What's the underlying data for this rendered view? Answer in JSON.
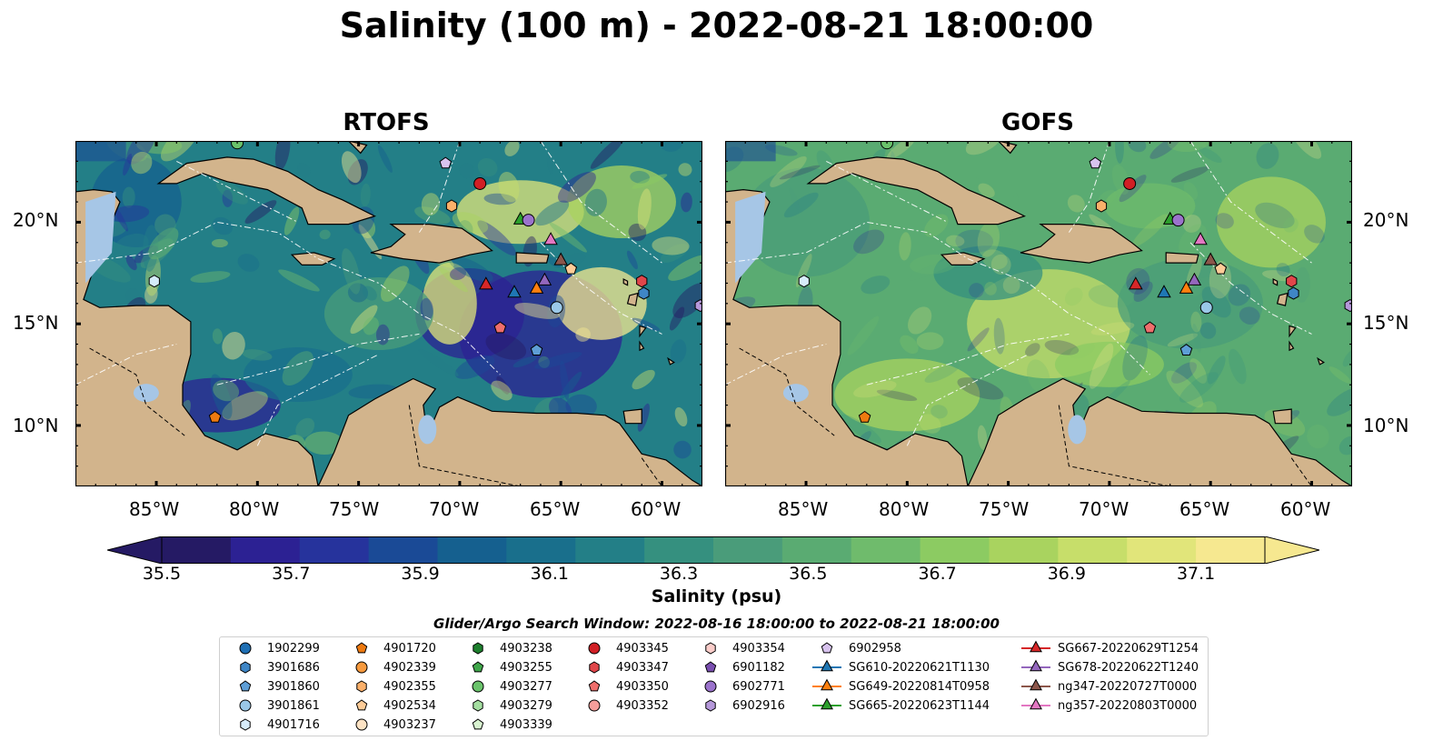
{
  "title": "Salinity (100 m) - 2022-08-21 18:00:00",
  "panels": [
    {
      "title": "RTOFS"
    },
    {
      "title": "GOFS"
    }
  ],
  "lon_labels": [
    "85°W",
    "80°W",
    "75°W",
    "70°W",
    "65°W",
    "60°W"
  ],
  "lat_labels": [
    "20°N",
    "15°N",
    "10°N"
  ],
  "colorbar": {
    "ticks": [
      "35.5",
      "35.7",
      "35.9",
      "36.1",
      "36.3",
      "36.5",
      "36.7",
      "36.9",
      "37.1"
    ],
    "label": "Salinity (psu)",
    "range": [
      35.5,
      37.1
    ],
    "colors": [
      "#251a64",
      "#2c2193",
      "#26339c",
      "#1a4a96",
      "#15608f",
      "#196f8c",
      "#237f87",
      "#35907f",
      "#4a9c7a",
      "#5aab72",
      "#6fbb6c",
      "#8ccb62",
      "#a9d35f",
      "#c7de6a",
      "#e1e57a",
      "#f6e890"
    ]
  },
  "search_window": "Glider/Argo Search Window: 2022-08-16 18:00:00 to 2022-08-21 18:00:00",
  "legend_items": [
    {
      "label": "1902299",
      "marker": "circle",
      "color": "#1f6fb4"
    },
    {
      "label": "3901686",
      "marker": "hexagon",
      "color": "#3f86c6"
    },
    {
      "label": "3901860",
      "marker": "pentagon",
      "color": "#5e9ed6"
    },
    {
      "label": "3901861",
      "marker": "circle",
      "color": "#9ac8e8"
    },
    {
      "label": "4901716",
      "marker": "hexagon",
      "color": "#d6ecfa"
    },
    {
      "label": "4901720",
      "marker": "pentagon",
      "color": "#ee7a10"
    },
    {
      "label": "4902339",
      "marker": "circle",
      "color": "#f79a3e"
    },
    {
      "label": "4902355",
      "marker": "hexagon",
      "color": "#fbb06a"
    },
    {
      "label": "4902534",
      "marker": "pentagon",
      "color": "#fdcc98"
    },
    {
      "label": "4903237",
      "marker": "circle",
      "color": "#fde3c4"
    },
    {
      "label": "4903238",
      "marker": "hexagon",
      "color": "#1d7f2d"
    },
    {
      "label": "4903255",
      "marker": "pentagon",
      "color": "#3fa64a"
    },
    {
      "label": "4903277",
      "marker": "circle",
      "color": "#6ac36b"
    },
    {
      "label": "4903279",
      "marker": "hexagon",
      "color": "#a4dea0"
    },
    {
      "label": "4903339",
      "marker": "pentagon",
      "color": "#d8f3d0"
    },
    {
      "label": "4903345",
      "marker": "circle",
      "color": "#d11f25"
    },
    {
      "label": "4903347",
      "marker": "hexagon",
      "color": "#e0464a"
    },
    {
      "label": "4903350",
      "marker": "pentagon",
      "color": "#ef6e6c"
    },
    {
      "label": "4903352",
      "marker": "circle",
      "color": "#f69e9b"
    },
    {
      "label": "4903354",
      "marker": "hexagon",
      "color": "#fbcdca"
    },
    {
      "label": "6901182",
      "marker": "pentagon",
      "color": "#7a4fb0"
    },
    {
      "label": "6902771",
      "marker": "circle",
      "color": "#9b73cc"
    },
    {
      "label": "6902916",
      "marker": "hexagon",
      "color": "#b598da"
    },
    {
      "label": "6902958",
      "marker": "pentagon",
      "color": "#d8c3ee"
    },
    {
      "label": "SG610-20220621T1130",
      "marker": "triangle",
      "color": "#1f77b4"
    },
    {
      "label": "SG649-20220814T0958",
      "marker": "triangle",
      "color": "#ff7f0e"
    },
    {
      "label": "SG665-20220623T1144",
      "marker": "triangle",
      "color": "#2ca02c"
    },
    {
      "label": "SG667-20220629T1254",
      "marker": "triangle",
      "color": "#d62728"
    },
    {
      "label": "SG678-20220622T1240",
      "marker": "triangle",
      "color": "#9467bd"
    },
    {
      "label": "ng347-20220727T0000",
      "marker": "triangle",
      "color": "#8c564b"
    },
    {
      "label": "ng357-20220803T0000",
      "marker": "triangle",
      "color": "#e377c2"
    }
  ],
  "map_extent": {
    "lon": [
      -89,
      -58
    ],
    "lat": [
      7,
      24
    ]
  },
  "colors": {
    "land": "#d2b48c",
    "ocean": "#a6c6e6"
  },
  "map_markers": [
    {
      "legend": "4903345",
      "lon": -69.0,
      "lat": 21.9
    },
    {
      "legend": "6902958",
      "lon": -70.7,
      "lat": 22.9
    },
    {
      "legend": "4902355",
      "lon": -70.4,
      "lat": 20.8
    },
    {
      "legend": "SG665-20220623T1144",
      "lon": -67.0,
      "lat": 20.1
    },
    {
      "legend": "6902771",
      "lon": -66.6,
      "lat": 20.1
    },
    {
      "legend": "ng357-20220803T0000",
      "lon": -65.5,
      "lat": 19.1
    },
    {
      "legend": "ng347-20220727T0000",
      "lon": -65.0,
      "lat": 18.1
    },
    {
      "legend": "4902534",
      "lon": -64.5,
      "lat": 17.7
    },
    {
      "legend": "SG678-20220622T1240",
      "lon": -65.8,
      "lat": 17.1
    },
    {
      "legend": "SG649-20220814T0958",
      "lon": -66.2,
      "lat": 16.7
    },
    {
      "legend": "SG610-20220621T1130",
      "lon": -67.3,
      "lat": 16.5
    },
    {
      "legend": "SG667-20220629T1254",
      "lon": -68.7,
      "lat": 16.9
    },
    {
      "legend": "3901861",
      "lon": -65.2,
      "lat": 15.8
    },
    {
      "legend": "4903350",
      "lon": -68.0,
      "lat": 14.8
    },
    {
      "legend": "3901860",
      "lon": -66.2,
      "lat": 13.7
    },
    {
      "legend": "4903347",
      "lon": -61.0,
      "lat": 17.1
    },
    {
      "legend": "3901686",
      "lon": -60.9,
      "lat": 16.5
    },
    {
      "legend": "6902916",
      "lon": -58.1,
      "lat": 15.9
    },
    {
      "legend": "4901716",
      "lon": -85.1,
      "lat": 17.1
    },
    {
      "legend": "4901720",
      "lon": -82.1,
      "lat": 10.4
    },
    {
      "legend": "4903277",
      "lon": -81.0,
      "lat": 23.9
    }
  ]
}
